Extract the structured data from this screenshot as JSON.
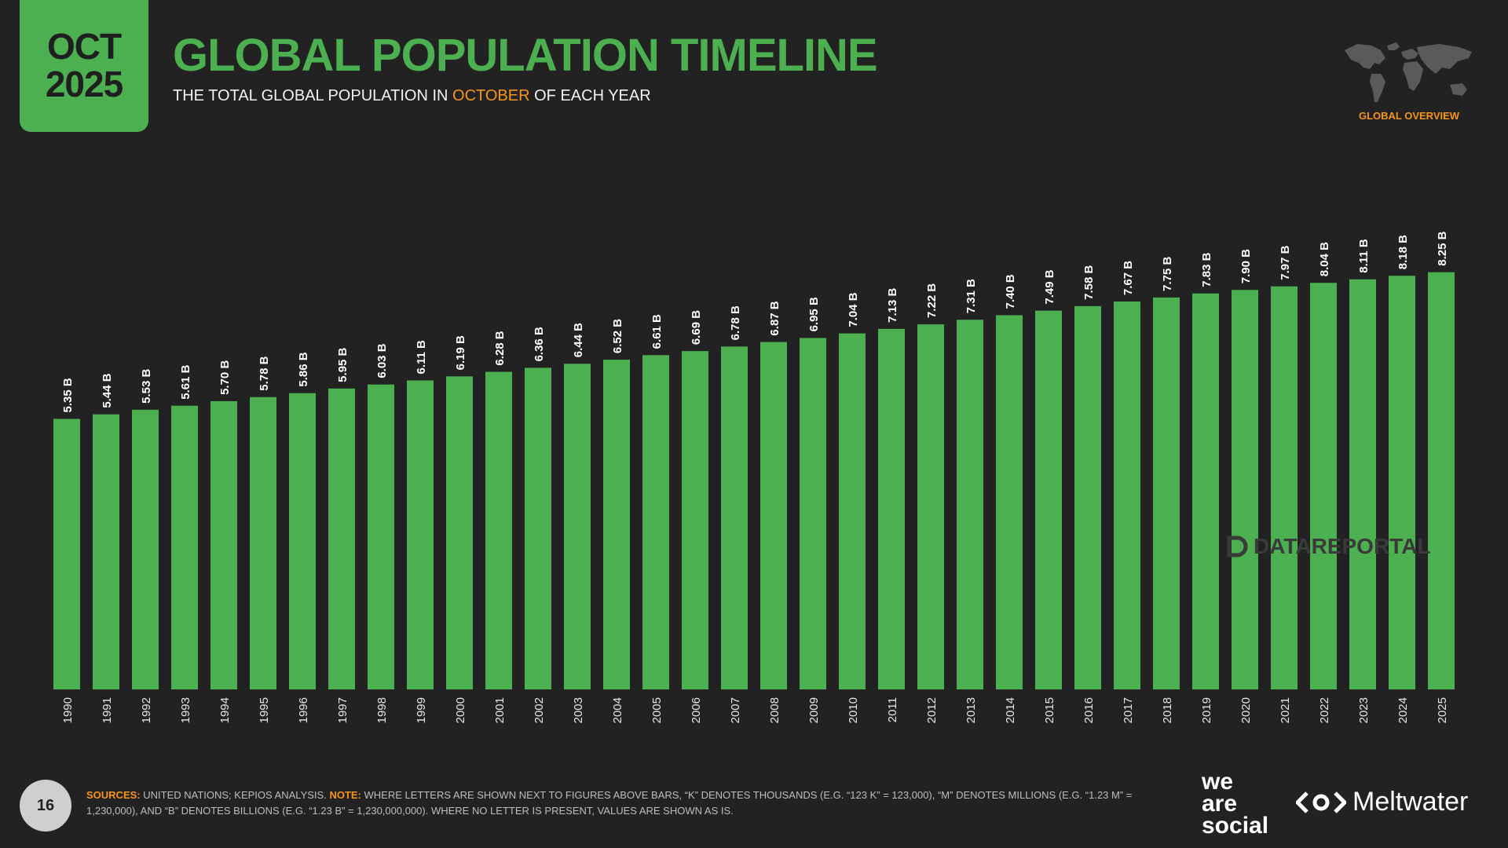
{
  "badge": {
    "month": "OCT",
    "year": "2025"
  },
  "header": {
    "title": "GLOBAL POPULATION TIMELINE",
    "subtitle_pre": "THE TOTAL GLOBAL POPULATION IN ",
    "subtitle_hl": "OCTOBER",
    "subtitle_post": " OF EACH YEAR",
    "section_label": "GLOBAL OVERVIEW"
  },
  "colors": {
    "bar": "#4caf50",
    "accent": "#f7941d",
    "background": "#222222"
  },
  "watermark": "DATAREPORTAL",
  "chart_data": {
    "type": "bar",
    "categories": [
      "1990",
      "1991",
      "1992",
      "1993",
      "1994",
      "1995",
      "1996",
      "1997",
      "1998",
      "1999",
      "2000",
      "2001",
      "2002",
      "2003",
      "2004",
      "2005",
      "2006",
      "2007",
      "2008",
      "2009",
      "2010",
      "2011",
      "2012",
      "2013",
      "2014",
      "2015",
      "2016",
      "2017",
      "2018",
      "2019",
      "2020",
      "2021",
      "2022",
      "2023",
      "2024",
      "2025"
    ],
    "values": [
      5.35,
      5.44,
      5.53,
      5.61,
      5.7,
      5.78,
      5.86,
      5.95,
      6.03,
      6.11,
      6.19,
      6.28,
      6.36,
      6.44,
      6.52,
      6.61,
      6.69,
      6.78,
      6.87,
      6.95,
      7.04,
      7.13,
      7.22,
      7.31,
      7.4,
      7.49,
      7.58,
      7.67,
      7.75,
      7.83,
      7.9,
      7.97,
      8.04,
      8.11,
      8.18,
      8.25
    ],
    "labels": [
      "5.35 B",
      "5.44 B",
      "5.53 B",
      "5.61 B",
      "5.70 B",
      "5.78 B",
      "5.86 B",
      "5.95 B",
      "6.03 B",
      "6.11 B",
      "6.19 B",
      "6.28 B",
      "6.36 B",
      "6.44 B",
      "6.52 B",
      "6.61 B",
      "6.69 B",
      "6.78 B",
      "6.87 B",
      "6.95 B",
      "7.04 B",
      "7.13 B",
      "7.22 B",
      "7.31 B",
      "7.40 B",
      "7.49 B",
      "7.58 B",
      "7.67 B",
      "7.75 B",
      "7.83 B",
      "7.90 B",
      "7.97 B",
      "8.04 B",
      "8.11 B",
      "8.18 B",
      "8.25 B"
    ],
    "title": "GLOBAL POPULATION TIMELINE",
    "xlabel": "",
    "ylabel": "",
    "ylim": [
      0,
      8.25
    ],
    "grid": false
  },
  "footer": {
    "page_number": "16",
    "sources_label": "SOURCES:",
    "sources_text": " UNITED NATIONS; KEPIOS ANALYSIS. ",
    "note_label": "NOTE:",
    "note_text": " WHERE LETTERS ARE SHOWN NEXT TO FIGURES ABOVE BARS, “K” DENOTES THOUSANDS (E.G. “123 K” = 123,000), “M” DENOTES MILLIONS (E.G. “1.23 M” = 1,230,000), AND “B” DENOTES BILLIONS (E.G. “1.23 B” = 1,230,000,000). WHERE NO LETTER IS PRESENT, VALUES ARE SHOWN AS IS.",
    "brand1": [
      "we",
      "are",
      "social"
    ],
    "brand2": "Meltwater"
  }
}
